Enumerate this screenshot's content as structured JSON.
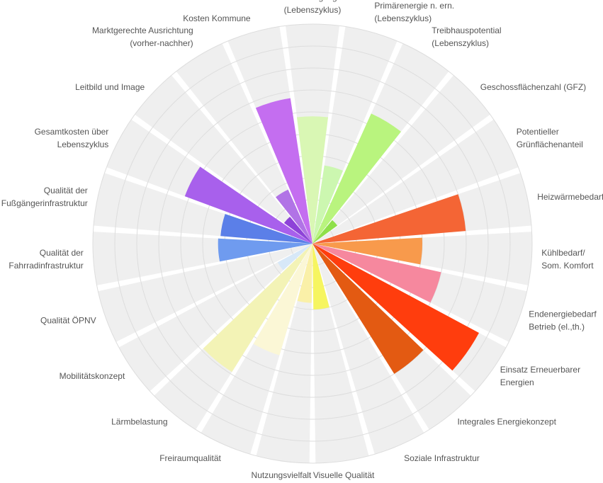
{
  "chart_data": {
    "type": "polar-area",
    "rmax": 10,
    "grid": true,
    "categories": [
      "Primärenergie ges. (Lebenszyklus)",
      "Primärenergie n. ern. (Lebenszyklus)",
      "Treibhauspotential (Lebenszyklus)",
      "Geschossflächenzahl (GFZ)",
      "Potentieller Grünflächenanteil",
      "Heizwärmebedarf",
      "Kühlbedarf/ Som. Komfort",
      "Endenergiebedarf Betrieb (el.,th.)",
      "Einsatz Erneuerbarer Energien",
      "Integrales Energiekonzept",
      "Soziale Infrastruktur",
      "Visuelle Qualität",
      "Nutzungsvielfalt",
      "Freiraumqualität",
      "Lärmbelastung",
      "Mobilitätskonzept",
      "Qualität ÖPNV",
      "Qualität der Fahrradinfrastruktur",
      "Qualität der Fußgängerinfrastruktur",
      "Gesamtkosten über Lebenszyklus",
      "Leitbild und Image",
      "Marktgerechte Ausrichtung (vorher-nachher)",
      "Kosten Kommune"
    ],
    "label_lines": [
      [
        "Primärenergie ges.",
        "(Lebenszyklus)"
      ],
      [
        "Primärenergie n. ern.",
        "(Lebenszyklus)"
      ],
      [
        "Treibhauspotential",
        "(Lebenszyklus)"
      ],
      [
        "Geschossflächenzahl (GFZ)"
      ],
      [
        "Potentieller",
        "Grünflächenanteil"
      ],
      [
        "Heizwärmebedarf"
      ],
      [
        "Kühlbedarf/",
        "Som. Komfort"
      ],
      [
        "Endenergiebedarf",
        "Betrieb (el.,th.)"
      ],
      [
        "Einsatz Erneuerbarer",
        "Energien"
      ],
      [
        "Integrales Energiekonzept"
      ],
      [
        "Soziale Infrastruktur"
      ],
      [
        "Visuelle Qualität"
      ],
      [
        "Nutzungsvielfalt"
      ],
      [
        "Freiraumqualität"
      ],
      [
        "Lärmbelastung"
      ],
      [
        "Mobilitätskonzept"
      ],
      [
        "Qualität ÖPNV"
      ],
      [
        "Qualität der",
        "Fahrradinfrastruktur"
      ],
      [
        "Qualität der",
        "Fußgängerinfrastruktur"
      ],
      [
        "Gesamtkosten über",
        "Lebenszyklus"
      ],
      [
        "Leitbild und Image"
      ],
      [
        "Marktgerechte Ausrichtung",
        "(vorher-nachher)"
      ],
      [
        "Kosten Kommune"
      ]
    ],
    "values": [
      5.8,
      3.6,
      6.5,
      1.4,
      0,
      7.0,
      5.0,
      6.0,
      8.6,
      7.0,
      0,
      3.0,
      2.7,
      5.3,
      6.9,
      1.8,
      0,
      4.3,
      4.2,
      6.2,
      1.6,
      2.7,
      6.7
    ],
    "colors": [
      "#d9f7b4",
      "#ccf7b0",
      "#b9f47e",
      "#8fe04a",
      "#8fe04a",
      "#f46535",
      "#f89a4c",
      "#f6889e",
      "#ff3d0d",
      "#e35a12",
      "#e35a12",
      "#f6f560",
      "#faf0a8",
      "#fbf7d6",
      "#f3f3b6",
      "#d7e8f8",
      "#d7e8f8",
      "#6f9bef",
      "#5b7fe8",
      "#a860ec",
      "#8e43d8",
      "#b173e6",
      "#c46ef0"
    ]
  }
}
